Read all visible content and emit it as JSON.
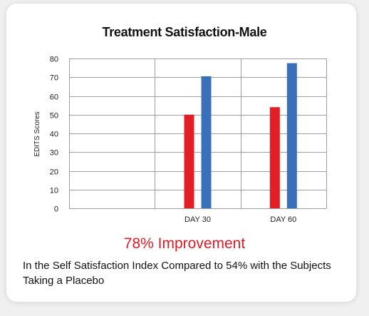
{
  "chart_data": {
    "type": "bar",
    "title": "Treatment Satisfaction-Male",
    "xlabel": "",
    "ylabel": "EDITS Scores",
    "categories": [
      "",
      "DAY 30",
      "DAY 60"
    ],
    "series": [
      {
        "color": "#e21e26",
        "values": [
          null,
          50,
          54
        ]
      },
      {
        "color": "#3a6fba",
        "values": [
          null,
          70.5,
          77.5
        ]
      }
    ],
    "ylim": [
      0,
      80
    ],
    "yticks": [
      0,
      10,
      20,
      30,
      40,
      50,
      60,
      70,
      80
    ],
    "grid": true,
    "legend": "none"
  },
  "summary": {
    "headline": "78% Improvement",
    "description": "In the Self Satisfaction Index Compared to 54% with the Subjects Taking a Placebo"
  },
  "colors": {
    "headline": "#e01b24",
    "gridline": "#9e9e9e",
    "axis_text": "#222222"
  }
}
